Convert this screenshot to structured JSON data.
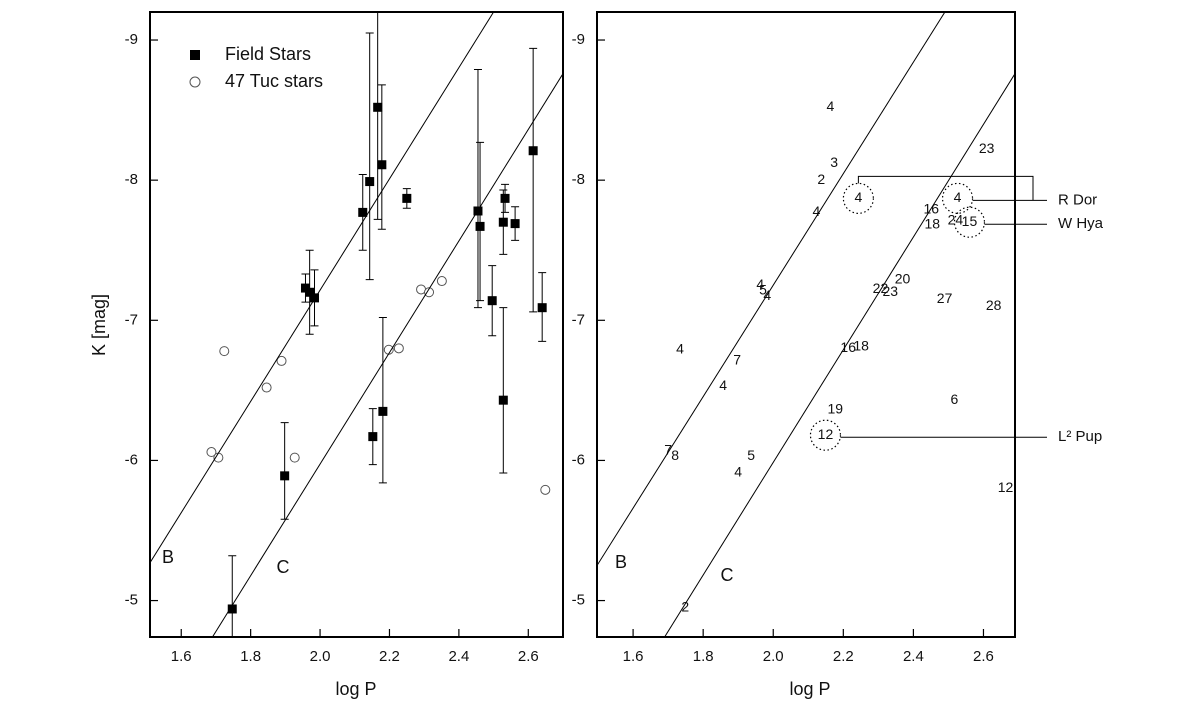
{
  "chart_data": [
    {
      "type": "scatter",
      "xlabel": "log P",
      "ylabel": "K [mag]",
      "xlim": [
        1.51,
        2.7
      ],
      "ylim": [
        -4.74,
        -9.2
      ],
      "xticks": [
        1.6,
        1.8,
        {
          "value": 2,
          "label": "2.0"
        },
        2.2,
        2.4,
        2.6
      ],
      "yticks": [
        -9,
        -8,
        -7,
        -6,
        -5
      ],
      "legend": "upper left",
      "series": [
        {
          "name": "Field Stars",
          "marker": "square",
          "color": "#000000",
          "x": [
            1.747,
            1.898,
            1.958,
            1.97,
            1.984,
            2.123,
            2.143,
            2.166,
            2.178,
            2.152,
            2.181,
            2.25,
            2.455,
            2.461,
            2.496,
            2.528,
            2.533,
            2.562,
            2.528,
            2.614,
            2.64
          ],
          "values": [
            -4.94,
            -5.89,
            -7.23,
            -7.2,
            -7.16,
            -7.77,
            -7.99,
            -8.52,
            -8.11,
            -6.17,
            -6.35,
            -7.87,
            -7.78,
            -7.67,
            -7.14,
            -7.7,
            -7.87,
            -7.69,
            -6.43,
            -8.21,
            -7.09
          ],
          "yerr_upper": [
            0.38,
            0.38,
            0.1,
            0.3,
            0.2,
            0.27,
            1.06,
            0.8,
            0.57,
            0.2,
            0.67,
            0.07,
            1.01,
            0.6,
            0.25,
            0.23,
            0.1,
            0.12,
            0.66,
            0.73,
            0.25
          ],
          "yerr_lower": [
            0.38,
            0.31,
            0.1,
            0.3,
            0.2,
            0.27,
            0.7,
            0.8,
            0.46,
            0.2,
            0.51,
            0.07,
            0.69,
            0.53,
            0.25,
            0.23,
            0.1,
            0.12,
            0.52,
            1.15,
            0.24
          ]
        },
        {
          "name": "47 Tuc stars",
          "marker": "circle",
          "color": "#555555",
          "x": [
            1.687,
            1.707,
            1.724,
            1.846,
            1.889,
            1.927,
            2.198,
            2.227,
            2.291,
            2.314,
            2.351,
            2.649
          ],
          "values": [
            -6.06,
            -6.02,
            -6.78,
            -6.52,
            -6.71,
            -6.02,
            -6.79,
            -6.8,
            -7.22,
            -7.2,
            -7.28,
            -5.79
          ]
        },
        {
          "name": "B",
          "marker": "line",
          "color": "#000000",
          "x": [
            1.51,
            2.5
          ],
          "values": [
            -5.27,
            -9.2
          ]
        },
        {
          "name": "C",
          "marker": "line",
          "color": "#000000",
          "x": [
            1.69,
            2.7
          ],
          "values": [
            -4.74,
            -8.76
          ]
        }
      ]
    },
    {
      "type": "scatter",
      "xlabel": "log P",
      "xlim": [
        1.497,
        2.69
      ],
      "ylim": [
        -4.74,
        -9.2
      ],
      "xticks": [
        1.6,
        1.8,
        {
          "value": 2,
          "label": "2.0"
        },
        2.2,
        2.4,
        2.6
      ],
      "yticks": [
        -9,
        -8,
        -7,
        -6,
        -5
      ],
      "series": [
        {
          "marker": "text",
          "color": "#000000",
          "labels": [
            "4",
            "3",
            "2",
            "4",
            "4",
            "23",
            "4",
            "16",
            "18",
            "24",
            "15",
            "4",
            "5",
            "4",
            "22",
            "23",
            "20",
            "27",
            "28",
            "4",
            "7",
            "4",
            "16",
            "18",
            "19",
            "6",
            "12",
            "7",
            "8",
            "5",
            "4",
            "12",
            "2"
          ],
          "x": [
            2.163,
            2.174,
            2.137,
            2.123,
            2.243,
            2.609,
            2.526,
            2.451,
            2.454,
            2.52,
            2.56,
            1.963,
            1.971,
            1.983,
            2.306,
            2.334,
            2.369,
            2.489,
            2.629,
            1.734,
            1.897,
            1.857,
            2.214,
            2.251,
            2.177,
            2.517,
            2.149,
            1.7,
            1.72,
            1.937,
            1.9,
            2.663,
            1.749
          ],
          "values": [
            -8.52,
            -8.12,
            -8.0,
            -7.77,
            -7.87,
            -8.22,
            -7.87,
            -7.79,
            -7.68,
            -7.71,
            -7.7,
            -7.25,
            -7.21,
            -7.17,
            -7.22,
            -7.2,
            -7.29,
            -7.15,
            -7.1,
            -6.79,
            -6.71,
            -6.53,
            -6.8,
            -6.81,
            -6.36,
            -6.43,
            -6.18,
            -6.07,
            -6.03,
            -6.03,
            -5.91,
            -5.8,
            -4.95
          ],
          "circled": [
            4,
            6,
            10,
            26
          ]
        },
        {
          "name": "B",
          "marker": "line",
          "color": "#000000",
          "x": [
            1.497,
            2.49
          ],
          "values": [
            -5.25,
            -9.2
          ]
        },
        {
          "name": "C",
          "marker": "line",
          "color": "#000000",
          "x": [
            1.69,
            2.69
          ],
          "values": [
            -4.74,
            -8.76
          ]
        }
      ],
      "annotations": [
        {
          "text": "R Dor",
          "targets": [
            4,
            6
          ]
        },
        {
          "text": "W Hya",
          "targets": [
            10
          ]
        },
        {
          "text": "L² Pup",
          "targets": [
            26
          ]
        }
      ]
    }
  ]
}
